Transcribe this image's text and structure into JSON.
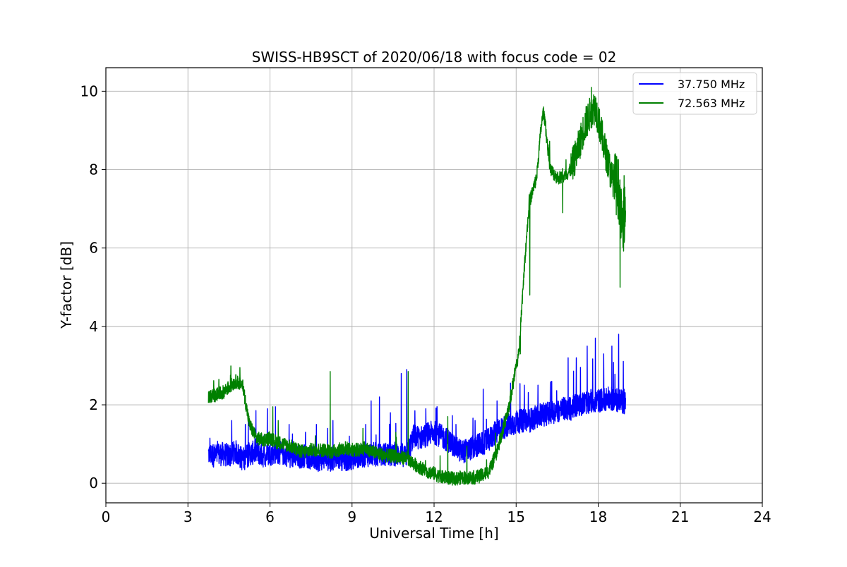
{
  "chart_data": {
    "type": "line",
    "title": "SWISS-HB9SCT of 2020/06/18 with focus code = 02",
    "xlabel": "Universal Time [h]",
    "ylabel": "Y-factor [dB]",
    "xlim": [
      0,
      24
    ],
    "ylim": [
      -0.5,
      10.6
    ],
    "xticks": [
      0,
      3,
      6,
      9,
      12,
      15,
      18,
      21,
      24
    ],
    "xtick_labels": [
      "0",
      "3",
      "6",
      "9",
      "12",
      "15",
      "18",
      "21",
      "24"
    ],
    "yticks": [
      0,
      2,
      4,
      6,
      8,
      10
    ],
    "ytick_labels": [
      "0",
      "2",
      "4",
      "6",
      "8",
      "10"
    ],
    "grid": true,
    "legend_position": "top-right",
    "series": [
      {
        "name": "37.750 MHz",
        "color": "#0000ff",
        "x": [
          3.75,
          4.0,
          4.25,
          4.5,
          4.75,
          5.0,
          5.25,
          5.5,
          5.75,
          6.0,
          6.25,
          6.5,
          6.75,
          7.0,
          7.25,
          7.5,
          7.75,
          8.0,
          8.25,
          8.5,
          8.75,
          9.0,
          9.25,
          9.5,
          9.75,
          10.0,
          10.25,
          10.5,
          10.75,
          11.0,
          11.25,
          11.5,
          11.75,
          12.0,
          12.25,
          12.5,
          12.75,
          13.0,
          13.25,
          13.5,
          13.75,
          14.0,
          14.25,
          14.5,
          14.75,
          15.0,
          15.25,
          15.5,
          15.75,
          16.0,
          16.25,
          16.5,
          16.75,
          17.0,
          17.25,
          17.5,
          17.75,
          18.0,
          18.25,
          18.5,
          18.75,
          19.0
        ],
        "y": [
          0.75,
          0.7,
          0.75,
          0.7,
          0.8,
          0.6,
          0.75,
          0.8,
          0.7,
          0.75,
          0.8,
          0.75,
          0.7,
          0.65,
          0.7,
          0.65,
          0.6,
          0.65,
          0.6,
          0.65,
          0.6,
          0.65,
          0.7,
          0.7,
          0.75,
          0.7,
          0.75,
          0.7,
          0.75,
          0.7,
          1.2,
          1.15,
          1.25,
          1.3,
          1.2,
          1.1,
          0.95,
          0.8,
          0.85,
          0.95,
          1.0,
          1.1,
          1.3,
          1.4,
          1.5,
          1.55,
          1.6,
          1.6,
          1.7,
          1.75,
          1.8,
          1.85,
          1.9,
          1.9,
          2.0,
          2.05,
          2.1,
          2.1,
          2.15,
          2.15,
          2.1,
          2.05
        ],
        "spikes": [
          [
            3.8,
            1.15
          ],
          [
            4.6,
            1.6
          ],
          [
            5.1,
            1.5
          ],
          [
            5.9,
            1.9
          ],
          [
            6.2,
            1.95
          ],
          [
            6.7,
            1.5
          ],
          [
            7.3,
            1.3
          ],
          [
            7.7,
            1.5
          ],
          [
            8.1,
            1.4
          ],
          [
            8.3,
            1.6
          ],
          [
            8.9,
            1.2
          ],
          [
            9.5,
            1.5
          ],
          [
            9.7,
            2.1
          ],
          [
            10.0,
            2.2
          ],
          [
            10.4,
            1.8
          ],
          [
            10.8,
            2.8
          ],
          [
            11.0,
            2.9
          ],
          [
            11.3,
            1.85
          ],
          [
            11.7,
            1.9
          ],
          [
            12.1,
            1.9
          ],
          [
            12.8,
            1.5
          ],
          [
            13.5,
            1.6
          ],
          [
            13.8,
            2.4
          ],
          [
            14.3,
            2.1
          ],
          [
            14.8,
            2.3
          ],
          [
            15.3,
            2.5
          ],
          [
            15.8,
            2.5
          ],
          [
            16.3,
            2.6
          ],
          [
            16.9,
            3.2
          ],
          [
            17.2,
            3.2
          ],
          [
            17.6,
            3.5
          ],
          [
            17.9,
            3.7
          ],
          [
            18.2,
            3.3
          ],
          [
            18.5,
            3.5
          ],
          [
            18.75,
            3.8
          ],
          [
            18.95,
            2.4
          ]
        ]
      },
      {
        "name": "72.563 MHz",
        "color": "#008000",
        "x": [
          3.75,
          4.0,
          4.25,
          4.5,
          4.75,
          5.0,
          5.25,
          5.5,
          5.75,
          6.0,
          6.25,
          6.5,
          6.75,
          7.0,
          7.25,
          7.5,
          7.75,
          8.0,
          8.25,
          8.5,
          8.75,
          9.0,
          9.25,
          9.5,
          9.75,
          10.0,
          10.25,
          10.5,
          10.75,
          11.0,
          11.25,
          11.5,
          11.75,
          12.0,
          12.25,
          12.5,
          12.75,
          13.0,
          13.25,
          13.5,
          13.75,
          14.0,
          14.25,
          14.5,
          14.75,
          15.0,
          15.1,
          15.25,
          15.4,
          15.5,
          15.75,
          15.9,
          16.0,
          16.25,
          16.5,
          16.75,
          17.0,
          17.25,
          17.5,
          17.75,
          17.9,
          18.0,
          18.25,
          18.5,
          18.75,
          18.9,
          19.0
        ],
        "y": [
          2.2,
          2.25,
          2.3,
          2.45,
          2.6,
          2.5,
          1.5,
          1.15,
          1.1,
          1.15,
          1.05,
          1.0,
          0.95,
          0.85,
          0.8,
          0.85,
          0.85,
          0.85,
          0.8,
          0.85,
          0.9,
          0.85,
          0.85,
          0.9,
          0.8,
          0.75,
          0.7,
          0.7,
          0.65,
          0.65,
          0.5,
          0.4,
          0.3,
          0.25,
          0.15,
          0.15,
          0.1,
          0.15,
          0.15,
          0.15,
          0.2,
          0.3,
          0.7,
          1.3,
          2.0,
          3.0,
          3.3,
          5.0,
          6.5,
          7.2,
          7.8,
          9.0,
          9.5,
          8.0,
          7.8,
          7.8,
          8.0,
          8.5,
          9.1,
          9.5,
          9.6,
          9.3,
          8.5,
          7.8,
          7.5,
          6.3,
          7.5
        ],
        "spikes": [
          [
            4.9,
            2.95
          ],
          [
            6.1,
            1.95
          ],
          [
            8.2,
            2.85
          ],
          [
            9.4,
            1.4
          ],
          [
            10.6,
            1.3
          ],
          [
            11.05,
            2.85
          ],
          [
            12.5,
            1.7
          ],
          [
            13.2,
            0.95
          ],
          [
            15.15,
            3.3
          ],
          [
            15.5,
            4.8
          ],
          [
            16.0,
            9.6
          ],
          [
            16.7,
            6.9
          ],
          [
            17.75,
            10.1
          ],
          [
            18.8,
            5.0
          ],
          [
            18.95,
            7.85
          ]
        ]
      }
    ]
  }
}
